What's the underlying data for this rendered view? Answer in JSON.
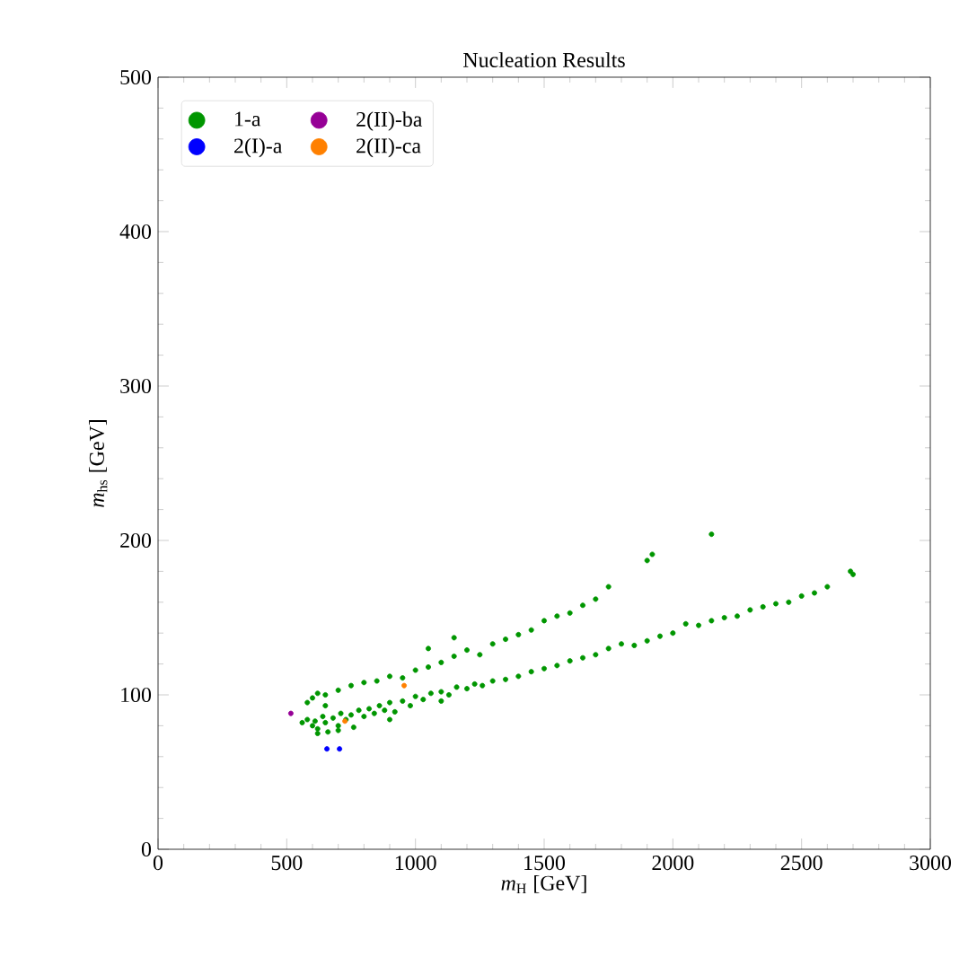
{
  "chart_data": {
    "type": "scatter",
    "title": "Nucleation Results",
    "xlabel": "*m*$_{H}$ [GeV]",
    "ylabel": "*m*$_{hs}$ [GeV]",
    "xlim": [
      0,
      3000
    ],
    "ylim": [
      0,
      500
    ],
    "xticks": [
      0,
      500,
      1000,
      1500,
      2000,
      2500,
      3000
    ],
    "yticks": [
      0,
      100,
      200,
      300,
      400,
      500
    ],
    "grid": false,
    "legend": "top left",
    "series": [
      {
        "name": "1-a",
        "color": "#009600",
        "x": [
          560,
          580,
          600,
          610,
          620,
          640,
          650,
          660,
          680,
          700,
          710,
          730,
          750,
          760,
          780,
          800,
          820,
          840,
          860,
          880,
          900,
          920,
          950,
          980,
          1000,
          1030,
          1060,
          1100,
          1130,
          1160,
          1200,
          1230,
          1260,
          1300,
          1350,
          1400,
          1450,
          1500,
          1550,
          1600,
          1650,
          1700,
          1750,
          1800,
          1850,
          1900,
          1950,
          2000,
          2050,
          2100,
          2150,
          2200,
          2250,
          2300,
          2350,
          2400,
          2450,
          2500,
          2550,
          2600,
          2700,
          2690,
          620,
          700,
          650,
          900,
          1100,
          580,
          600,
          620,
          650,
          700,
          750,
          800,
          850,
          900,
          950,
          1000,
          1050,
          1100,
          1150,
          1200,
          1250,
          1300,
          1350,
          1400,
          1450,
          1500,
          1550,
          1600,
          1650,
          1700,
          1750,
          1050,
          1150,
          1900,
          1920,
          2150
        ],
        "values": [
          82,
          84,
          80,
          83,
          78,
          86,
          82,
          76,
          85,
          80,
          88,
          84,
          87,
          79,
          90,
          86,
          91,
          88,
          93,
          90,
          95,
          89,
          96,
          93,
          99,
          97,
          101,
          102,
          100,
          105,
          104,
          107,
          106,
          109,
          110,
          112,
          115,
          117,
          119,
          122,
          124,
          126,
          130,
          133,
          132,
          135,
          138,
          140,
          146,
          145,
          148,
          150,
          151,
          155,
          157,
          159,
          160,
          164,
          166,
          170,
          178,
          180,
          75,
          77,
          93,
          84,
          96,
          95,
          98,
          101,
          100,
          103,
          106,
          108,
          109,
          112,
          111,
          116,
          118,
          121,
          125,
          129,
          126,
          133,
          136,
          139,
          142,
          148,
          151,
          153,
          158,
          162,
          170,
          130,
          137,
          187,
          191,
          204
        ]
      },
      {
        "name": "2(II)-ba",
        "color": "#960096",
        "x": [
          516
        ],
        "values": [
          88
        ]
      },
      {
        "name": "2(I)-a",
        "color": "#0000ff",
        "x": [
          656,
          705
        ],
        "values": [
          65,
          65
        ]
      },
      {
        "name": "2(II)-ca",
        "color": "#ff8000",
        "x": [
          726,
          956
        ],
        "values": [
          83,
          106
        ]
      }
    ]
  }
}
